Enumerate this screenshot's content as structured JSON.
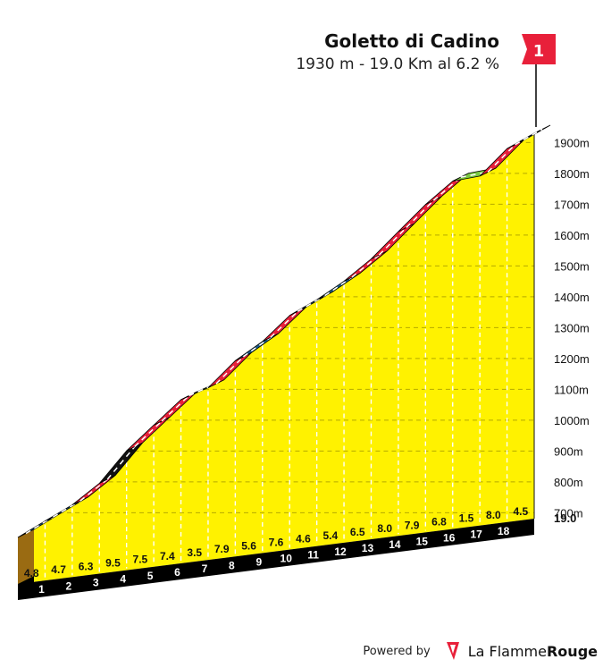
{
  "climb": {
    "name": "Goletto di Cadino",
    "summary": "1930 m - 19.0 Km al 6.2 %",
    "flag_number": "1"
  },
  "footer": {
    "powered_label": "Powered by",
    "brand_light": "La Flamme",
    "brand_bold": "Rouge"
  },
  "colors": {
    "fill": "#fff200",
    "base_side": "#9a6b12",
    "gradient_blue": "#1d5f8c",
    "gradient_red": "#e8203a",
    "gradient_black": "#111111",
    "gradient_green": "#7ac943"
  },
  "chart_data": {
    "type": "area",
    "title": "Goletto di Cadino",
    "xlabel": "",
    "ylabel": "",
    "x_unit": "km",
    "y_unit": "m",
    "total_label": "19.0",
    "ylim": [
      620,
      1930
    ],
    "y_ticks": [
      "700m",
      "800m",
      "900m",
      "1000m",
      "1100m",
      "1200m",
      "1300m",
      "1400m",
      "1500m",
      "1600m",
      "1700m",
      "1800m",
      "1900m"
    ],
    "x_ticks": [
      "1",
      "2",
      "3",
      "4",
      "5",
      "6",
      "7",
      "8",
      "9",
      "10",
      "11",
      "12",
      "13",
      "14",
      "15",
      "16",
      "17",
      "18"
    ],
    "segments": [
      {
        "km": 1,
        "gradient": "4.8",
        "color": "blue"
      },
      {
        "km": 2,
        "gradient": "4.7",
        "color": "blue"
      },
      {
        "km": 3,
        "gradient": "6.3",
        "color": "red"
      },
      {
        "km": 4,
        "gradient": "9.5",
        "color": "black"
      },
      {
        "km": 5,
        "gradient": "7.5",
        "color": "red"
      },
      {
        "km": 6,
        "gradient": "7.4",
        "color": "red"
      },
      {
        "km": 7,
        "gradient": "3.5",
        "color": "green"
      },
      {
        "km": 8,
        "gradient": "7.9",
        "color": "red"
      },
      {
        "km": 9,
        "gradient": "5.6",
        "color": "blue"
      },
      {
        "km": 10,
        "gradient": "7.6",
        "color": "red"
      },
      {
        "km": 11,
        "gradient": "4.6",
        "color": "blue"
      },
      {
        "km": 12,
        "gradient": "5.4",
        "color": "blue"
      },
      {
        "km": 13,
        "gradient": "6.5",
        "color": "red"
      },
      {
        "km": 14,
        "gradient": "8.0",
        "color": "red"
      },
      {
        "km": 15,
        "gradient": "7.9",
        "color": "red"
      },
      {
        "km": 16,
        "gradient": "6.8",
        "color": "red"
      },
      {
        "km": 17,
        "gradient": "1.5",
        "color": "green"
      },
      {
        "km": 18,
        "gradient": "8.0",
        "color": "red"
      },
      {
        "km": 19,
        "gradient": "4.5",
        "color": "blue"
      }
    ]
  }
}
